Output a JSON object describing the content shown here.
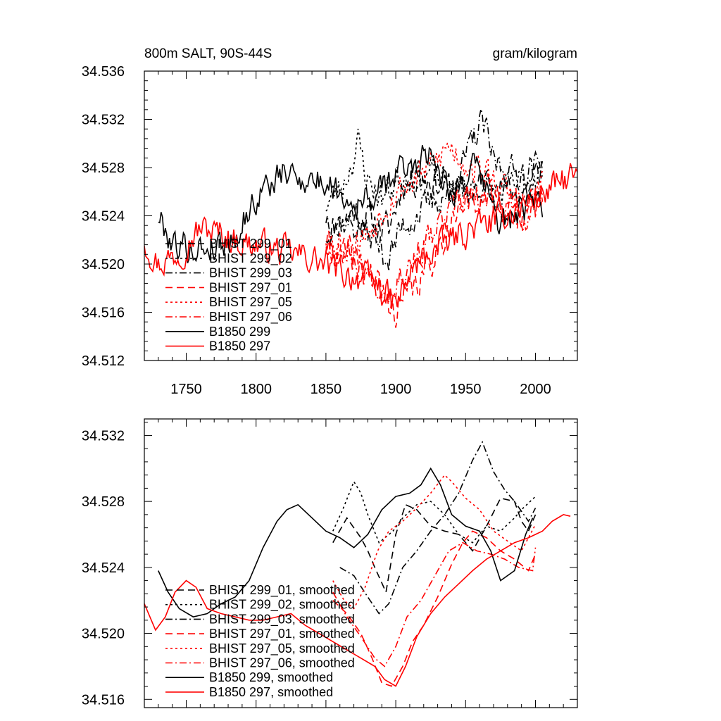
{
  "chart_data": [
    {
      "type": "line",
      "title": "800m SALT, 90S-44S",
      "units": "gram/kilogram",
      "xlabel": "",
      "ylabel": "",
      "xlim": [
        1720,
        2030
      ],
      "ylim": [
        34.512,
        34.536
      ],
      "xticks": [
        "1750",
        "1800",
        "1850",
        "1900",
        "1950",
        "2000"
      ],
      "yticks": [
        "34.512",
        "34.516",
        "34.520",
        "34.524",
        "34.528",
        "34.532",
        "34.536"
      ],
      "grid": false,
      "legend_position": "bottom-left",
      "series": [
        {
          "name": "BHIST 299_01",
          "color": "#000000",
          "dash": "dash",
          "start": 1850,
          "end": 2005,
          "anchors": [
            [
              1850,
              34.5225
            ],
            [
              1870,
              34.5245
            ],
            [
              1885,
              34.5235
            ],
            [
              1895,
              34.5228
            ],
            [
              1905,
              34.5268
            ],
            [
              1920,
              34.5272
            ],
            [
              1935,
              34.5265
            ],
            [
              1950,
              34.5258
            ],
            [
              1965,
              34.527
            ],
            [
              1980,
              34.526
            ],
            [
              1995,
              34.5262
            ],
            [
              2005,
              34.5282
            ]
          ],
          "amp": 0.0012,
          "seed": 11
        },
        {
          "name": "BHIST 299_02",
          "color": "#000000",
          "dash": "dot",
          "start": 1850,
          "end": 2005,
          "anchors": [
            [
              1850,
              34.525
            ],
            [
              1862,
              34.5265
            ],
            [
              1873,
              34.53
            ],
            [
              1880,
              34.527
            ],
            [
              1890,
              34.5255
            ],
            [
              1905,
              34.5275
            ],
            [
              1925,
              34.5275
            ],
            [
              1940,
              34.5262
            ],
            [
              1960,
              34.5265
            ],
            [
              1975,
              34.5258
            ],
            [
              1990,
              34.5268
            ],
            [
              2005,
              34.528
            ]
          ],
          "amp": 0.0012,
          "seed": 23
        },
        {
          "name": "BHIST 299_03",
          "color": "#000000",
          "dash": "dashdot",
          "start": 1850,
          "end": 2005,
          "anchors": [
            [
              1850,
              34.524
            ],
            [
              1870,
              34.5232
            ],
            [
              1885,
              34.522
            ],
            [
              1895,
              34.5205
            ],
            [
              1905,
              34.5232
            ],
            [
              1925,
              34.525
            ],
            [
              1940,
              34.5262
            ],
            [
              1955,
              34.53
            ],
            [
              1962,
              34.5318
            ],
            [
              1970,
              34.5285
            ],
            [
              1985,
              34.5275
            ],
            [
              2005,
              34.5283
            ]
          ],
          "amp": 0.0012,
          "seed": 37
        },
        {
          "name": "BHIST 297_01",
          "color": "#ff0000",
          "dash": "dash",
          "start": 1850,
          "end": 2005,
          "anchors": [
            [
              1850,
              34.5215
            ],
            [
              1870,
              34.5205
            ],
            [
              1885,
              34.519
            ],
            [
              1893,
              34.5165
            ],
            [
              1900,
              34.5163
            ],
            [
              1910,
              34.5175
            ],
            [
              1920,
              34.519
            ],
            [
              1930,
              34.5215
            ],
            [
              1945,
              34.5245
            ],
            [
              1960,
              34.526
            ],
            [
              1975,
              34.5255
            ],
            [
              1990,
              34.5245
            ],
            [
              2005,
              34.5255
            ]
          ],
          "amp": 0.0012,
          "seed": 41
        },
        {
          "name": "BHIST 297_05",
          "color": "#ff0000",
          "dash": "dot",
          "start": 1850,
          "end": 2005,
          "anchors": [
            [
              1850,
              34.5223
            ],
            [
              1865,
              34.5215
            ],
            [
              1880,
              34.5225
            ],
            [
              1895,
              34.5255
            ],
            [
              1910,
              34.5268
            ],
            [
              1925,
              34.528
            ],
            [
              1938,
              34.5298
            ],
            [
              1950,
              34.5285
            ],
            [
              1965,
              34.5275
            ],
            [
              1980,
              34.5258
            ],
            [
              1995,
              34.5248
            ],
            [
              2005,
              34.5268
            ]
          ],
          "amp": 0.0012,
          "seed": 53
        },
        {
          "name": "BHIST 297_06",
          "color": "#ff0000",
          "dash": "dashdot",
          "start": 1850,
          "end": 2005,
          "anchors": [
            [
              1850,
              34.522
            ],
            [
              1870,
              34.5205
            ],
            [
              1885,
              34.5185
            ],
            [
              1895,
              34.518
            ],
            [
              1905,
              34.5195
            ],
            [
              1920,
              34.5215
            ],
            [
              1935,
              34.5235
            ],
            [
              1950,
              34.5255
            ],
            [
              1965,
              34.525
            ],
            [
              1980,
              34.5245
            ],
            [
              1995,
              34.524
            ],
            [
              2005,
              34.525
            ]
          ],
          "amp": 0.0012,
          "seed": 67
        },
        {
          "name": "B1850 299",
          "color": "#000000",
          "dash": "solid",
          "start": 1730,
          "end": 2005,
          "anchors": [
            [
              1730,
              34.524
            ],
            [
              1740,
              34.5218
            ],
            [
              1755,
              34.5212
            ],
            [
              1770,
              34.5215
            ],
            [
              1785,
              34.5222
            ],
            [
              1795,
              34.5245
            ],
            [
              1805,
              34.5262
            ],
            [
              1820,
              34.5275
            ],
            [
              1840,
              34.527
            ],
            [
              1855,
              34.5265
            ],
            [
              1870,
              34.525
            ],
            [
              1885,
              34.5255
            ],
            [
              1900,
              34.5275
            ],
            [
              1915,
              34.5285
            ],
            [
              1925,
              34.5295
            ],
            [
              1940,
              34.526
            ],
            [
              1955,
              34.528
            ],
            [
              1965,
              34.5262
            ],
            [
              1975,
              34.5232
            ],
            [
              1985,
              34.524
            ],
            [
              2000,
              34.525
            ]
          ],
          "amp": 0.0011,
          "seed": 79
        },
        {
          "name": "B1850 297",
          "color": "#ff0000",
          "dash": "solid",
          "start": 1720,
          "end": 2030,
          "anchors": [
            [
              1720,
              34.522
            ],
            [
              1730,
              34.52
            ],
            [
              1745,
              34.521
            ],
            [
              1760,
              34.523
            ],
            [
              1775,
              34.5225
            ],
            [
              1790,
              34.5218
            ],
            [
              1805,
              34.5215
            ],
            [
              1820,
              34.521
            ],
            [
              1840,
              34.5205
            ],
            [
              1855,
              34.5195
            ],
            [
              1870,
              34.519
            ],
            [
              1885,
              34.5185
            ],
            [
              1900,
              34.5165
            ],
            [
              1912,
              34.5195
            ],
            [
              1925,
              34.521
            ],
            [
              1940,
              34.522
            ],
            [
              1955,
              34.523
            ],
            [
              1970,
              34.5235
            ],
            [
              1985,
              34.5245
            ],
            [
              2000,
              34.5255
            ],
            [
              2015,
              34.5265
            ],
            [
              2025,
              34.5272
            ],
            [
              2030,
              34.527
            ]
          ],
          "amp": 0.0011,
          "seed": 97
        }
      ]
    },
    {
      "type": "line",
      "title": "",
      "xlabel": "",
      "ylabel": "",
      "xlim": [
        1720,
        2030
      ],
      "ylim": [
        34.5155,
        34.533
      ],
      "yticks": [
        "34.516",
        "34.520",
        "34.524",
        "34.528",
        "34.532"
      ],
      "grid": false,
      "legend_position": "bottom-left",
      "series": [
        {
          "name": "BHIST 299_01, smoothed",
          "color": "#000000",
          "dash": "dash",
          "start": 1855,
          "end": 2000,
          "x": [
            1855,
            1865,
            1875,
            1880,
            1885,
            1893,
            1900,
            1907,
            1915,
            1925,
            1935,
            1945,
            1955,
            1965,
            1975,
            1985,
            1990,
            1995,
            2000
          ],
          "y": [
            34.5255,
            34.527,
            34.5258,
            34.525,
            34.524,
            34.5225,
            34.526,
            34.5278,
            34.5275,
            34.5265,
            34.5262,
            34.526,
            34.525,
            34.5265,
            34.5282,
            34.528,
            34.5268,
            34.5262,
            34.5272
          ]
        },
        {
          "name": "BHIST 299_02, smoothed",
          "color": "#000000",
          "dash": "dot",
          "start": 1855,
          "end": 2000,
          "x": [
            1855,
            1862,
            1870,
            1875,
            1880,
            1888,
            1898,
            1905,
            1915,
            1925,
            1935,
            1945,
            1955,
            1965,
            1975,
            1985,
            1990,
            2000
          ],
          "y": [
            34.5262,
            34.5275,
            34.5292,
            34.5285,
            34.5272,
            34.5255,
            34.5262,
            34.527,
            34.5278,
            34.528,
            34.5272,
            34.526,
            34.5255,
            34.5265,
            34.5262,
            34.527,
            34.5275,
            34.5283
          ]
        },
        {
          "name": "BHIST 299_03, smoothed",
          "color": "#000000",
          "dash": "dashdot",
          "start": 1860,
          "end": 2000,
          "x": [
            1860,
            1870,
            1880,
            1888,
            1895,
            1905,
            1915,
            1925,
            1935,
            1945,
            1955,
            1962,
            1970,
            1978,
            1985,
            1995,
            2000
          ],
          "y": [
            34.524,
            34.5235,
            34.5222,
            34.5212,
            34.5218,
            34.524,
            34.525,
            34.5262,
            34.5272,
            34.5285,
            34.5305,
            34.5316,
            34.5298,
            34.5287,
            34.528,
            34.5268,
            34.5276
          ]
        },
        {
          "name": "BHIST 297_01, smoothed",
          "color": "#ff0000",
          "dash": "dash",
          "start": 1855,
          "end": 2000,
          "x": [
            1855,
            1865,
            1875,
            1883,
            1890,
            1897,
            1905,
            1912,
            1920,
            1930,
            1940,
            1948,
            1955,
            1965,
            1975,
            1985,
            1995,
            2000
          ],
          "y": [
            34.522,
            34.5212,
            34.52,
            34.5185,
            34.517,
            34.5168,
            34.518,
            34.5195,
            34.5205,
            34.5222,
            34.5242,
            34.5255,
            34.5262,
            34.5258,
            34.525,
            34.5245,
            34.5238,
            34.5248
          ]
        },
        {
          "name": "BHIST 297_05, smoothed",
          "color": "#ff0000",
          "dash": "dot",
          "start": 1855,
          "end": 2000,
          "x": [
            1855,
            1863,
            1870,
            1878,
            1887,
            1895,
            1905,
            1915,
            1925,
            1935,
            1940,
            1950,
            1960,
            1970,
            1980,
            1990,
            2000
          ],
          "y": [
            34.5232,
            34.522,
            34.5215,
            34.5228,
            34.525,
            34.5262,
            34.5268,
            34.5276,
            34.5285,
            34.5296,
            34.5292,
            34.5282,
            34.5275,
            34.5262,
            34.5256,
            34.525,
            34.5266
          ]
        },
        {
          "name": "BHIST 297_06, smoothed",
          "color": "#ff0000",
          "dash": "dashdot",
          "start": 1855,
          "end": 2000,
          "x": [
            1855,
            1865,
            1875,
            1885,
            1892,
            1900,
            1908,
            1918,
            1928,
            1938,
            1948,
            1958,
            1968,
            1978,
            1988,
            1998,
            2000
          ],
          "y": [
            34.5225,
            34.521,
            34.5198,
            34.5185,
            34.518,
            34.5192,
            34.521,
            34.522,
            34.5235,
            34.525,
            34.5255,
            34.525,
            34.5248,
            34.5245,
            34.524,
            34.5238,
            34.5252
          ]
        },
        {
          "name": "B1850 299, smoothed",
          "color": "#000000",
          "dash": "solid",
          "start": 1730,
          "end": 1998,
          "x": [
            1730,
            1737,
            1745,
            1755,
            1765,
            1775,
            1785,
            1795,
            1805,
            1815,
            1822,
            1830,
            1840,
            1850,
            1860,
            1870,
            1880,
            1890,
            1900,
            1910,
            1918,
            1925,
            1932,
            1940,
            1950,
            1960,
            1968,
            1975,
            1985,
            1993,
            1998
          ],
          "y": [
            34.5238,
            34.5225,
            34.5215,
            34.521,
            34.5212,
            34.5218,
            34.5222,
            34.5232,
            34.5252,
            34.5268,
            34.5275,
            34.5278,
            34.527,
            34.5262,
            34.5258,
            34.5252,
            34.526,
            34.5275,
            34.5283,
            34.5285,
            34.529,
            34.53,
            34.529,
            34.5272,
            34.5265,
            34.5262,
            34.525,
            34.5232,
            34.5238,
            34.526,
            34.527
          ]
        },
        {
          "name": "B1850 297, smoothed",
          "color": "#ff0000",
          "dash": "solid",
          "start": 1720,
          "end": 2025,
          "x": [
            1720,
            1728,
            1735,
            1742,
            1750,
            1757,
            1765,
            1775,
            1785,
            1795,
            1805,
            1815,
            1825,
            1835,
            1845,
            1855,
            1865,
            1875,
            1885,
            1892,
            1900,
            1907,
            1915,
            1925,
            1935,
            1945,
            1955,
            1965,
            1975,
            1985,
            1995,
            2005,
            2012,
            2020,
            2025
          ],
          "y": [
            34.5218,
            34.5202,
            34.521,
            34.5225,
            34.5232,
            34.5228,
            34.5215,
            34.5212,
            34.521,
            34.5208,
            34.5208,
            34.521,
            34.5212,
            34.5205,
            34.52,
            34.5195,
            34.519,
            34.5185,
            34.518,
            34.5172,
            34.5168,
            34.518,
            34.5198,
            34.5212,
            34.5222,
            34.523,
            34.5238,
            34.5245,
            34.525,
            34.5255,
            34.5258,
            34.5262,
            34.5268,
            34.5272,
            34.5271
          ]
        }
      ]
    }
  ]
}
